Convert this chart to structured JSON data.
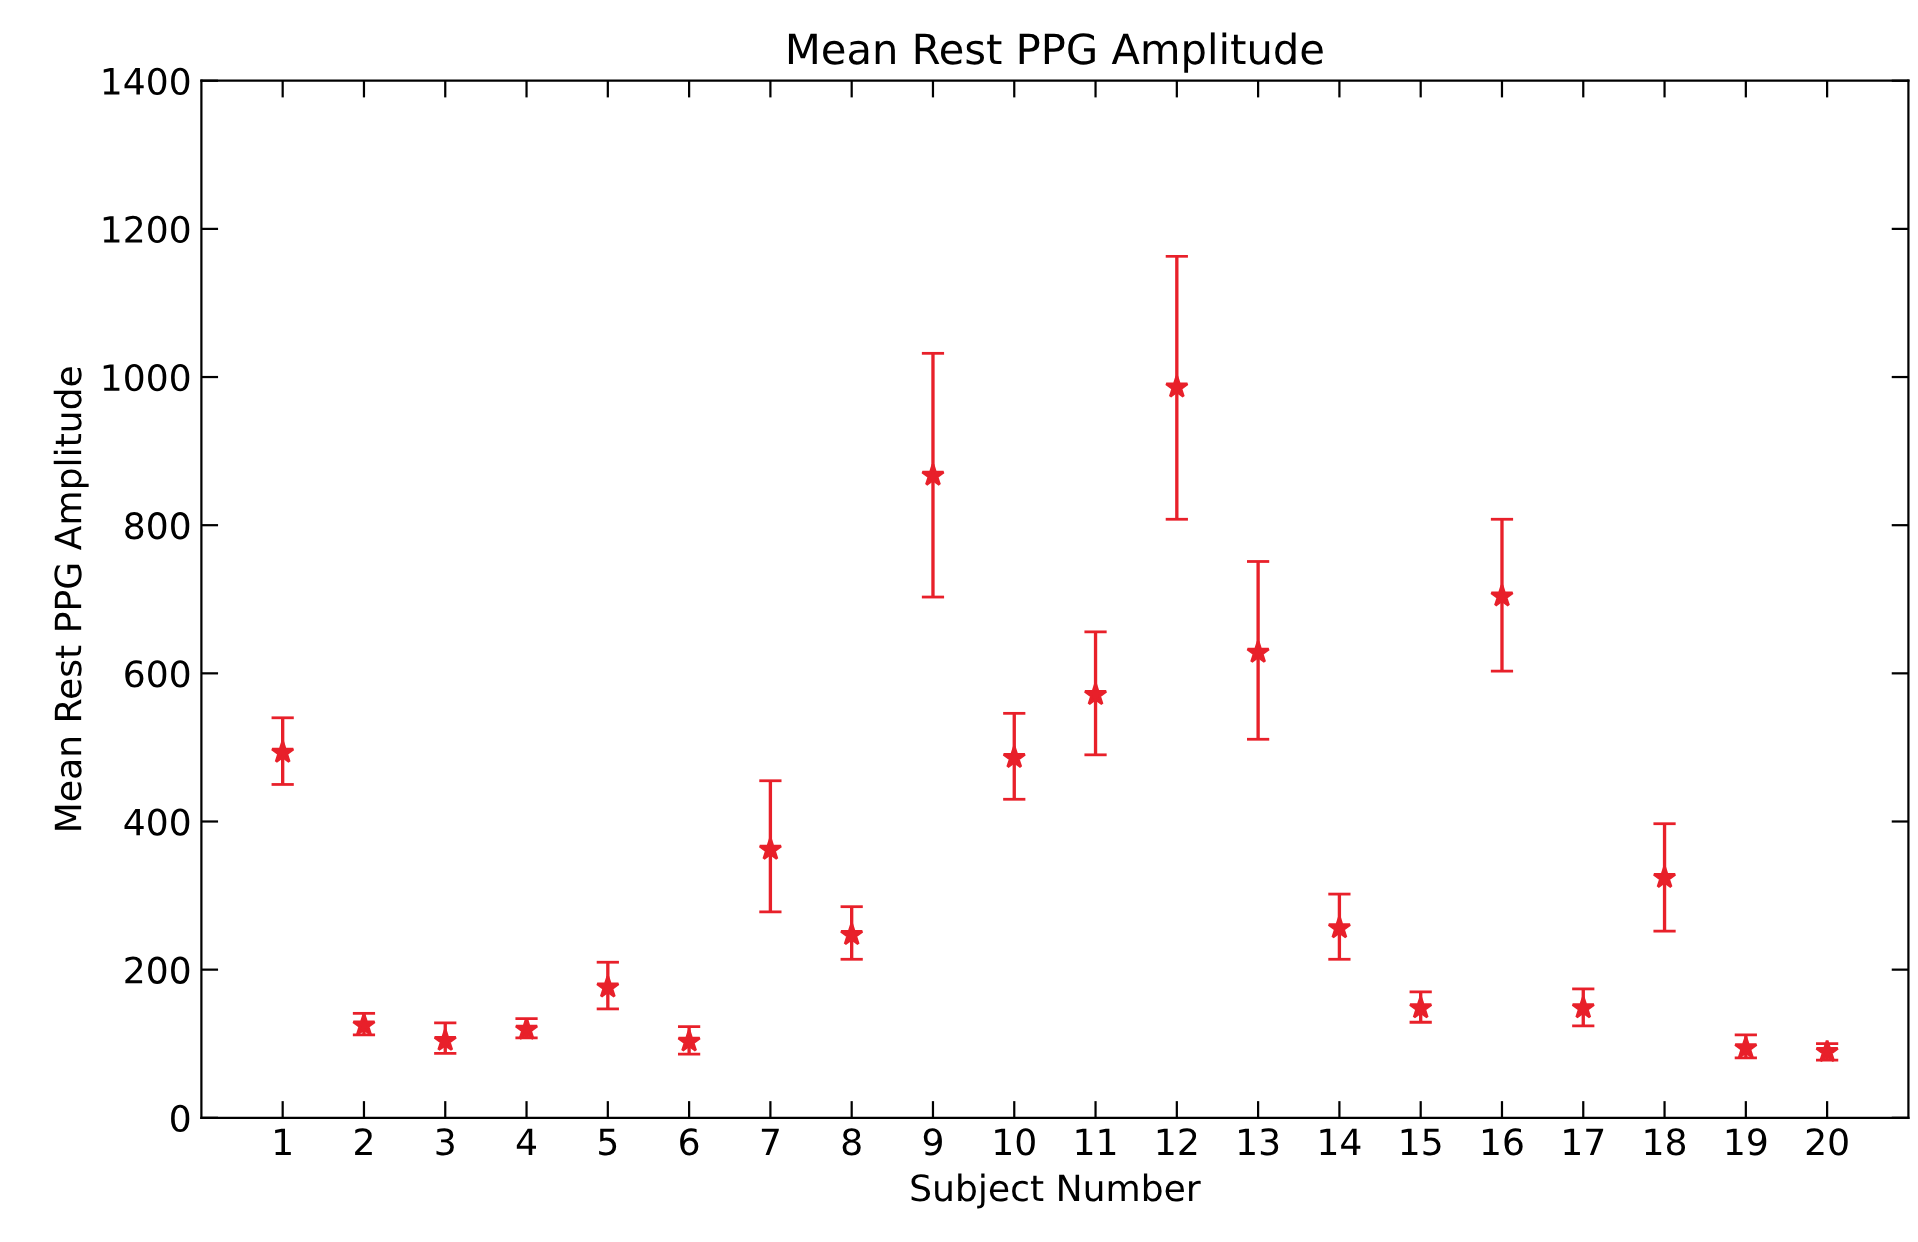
{
  "chart_data": {
    "type": "scatter",
    "title": "Mean Rest PPG Amplitude",
    "xlabel": "Subject Number",
    "ylabel": "Mean Rest PPG Amplitude",
    "x": [
      1,
      2,
      3,
      4,
      5,
      6,
      7,
      8,
      9,
      10,
      11,
      12,
      13,
      14,
      15,
      16,
      17,
      18,
      19,
      20
    ],
    "series": [
      {
        "color": "#e8202a",
        "values": [
          493,
          125,
          104,
          119,
          176,
          103,
          362,
          247,
          867,
          486,
          571,
          986,
          628,
          256,
          148,
          704,
          148,
          324,
          94,
          89
        ],
        "errors": [
          [
            450,
            540
          ],
          [
            112,
            141
          ],
          [
            87,
            128
          ],
          [
            108,
            134
          ],
          [
            147,
            210
          ],
          [
            86,
            123
          ],
          [
            278,
            455
          ],
          [
            214,
            285
          ],
          [
            703,
            1032
          ],
          [
            430,
            546
          ],
          [
            490,
            656
          ],
          [
            808,
            1163
          ],
          [
            511,
            751
          ],
          [
            214,
            302
          ],
          [
            129,
            170
          ],
          [
            603,
            808
          ],
          [
            124,
            174
          ],
          [
            252,
            397
          ],
          [
            81,
            112
          ],
          [
            78,
            100
          ]
        ]
      }
    ],
    "marker": "star",
    "grid": false,
    "xlim": [
      0,
      21
    ],
    "xticks": [
      1,
      2,
      3,
      4,
      5,
      6,
      7,
      8,
      9,
      10,
      11,
      12,
      13,
      14,
      15,
      16,
      17,
      18,
      19,
      20
    ],
    "ylim": [
      0,
      1400
    ],
    "yticks": [
      0,
      200,
      400,
      600,
      800,
      1000,
      1200,
      1400
    ]
  }
}
